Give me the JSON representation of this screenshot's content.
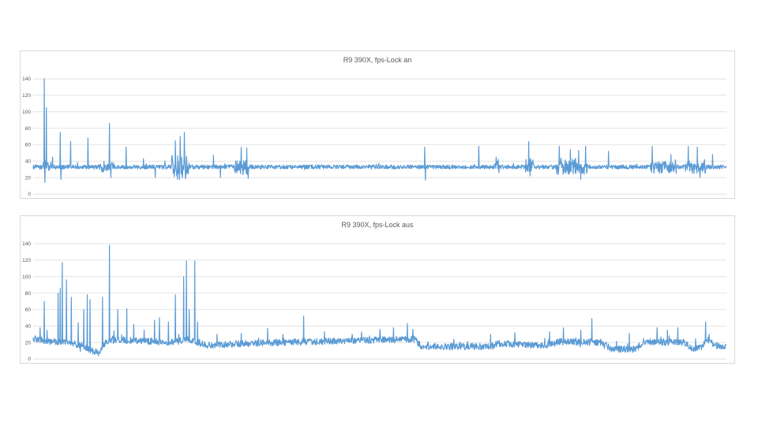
{
  "chart_data": [
    {
      "type": "line",
      "title": "R9 390X, fps-Lock an",
      "xlabel": "",
      "ylabel": "",
      "ylim": [
        0,
        140
      ],
      "yticks": [
        0,
        20,
        40,
        60,
        80,
        100,
        120,
        140
      ],
      "grid": true,
      "legend": "none",
      "color": "#5b9bd5",
      "baseline": 33,
      "noise": 2.5,
      "n_samples": 2000,
      "events": [
        {
          "x": 0.016,
          "y": 140
        },
        {
          "x": 0.017,
          "y": 14
        },
        {
          "x": 0.019,
          "y": 105
        },
        {
          "x": 0.028,
          "y": 45
        },
        {
          "x": 0.039,
          "y": 75
        },
        {
          "x": 0.04,
          "y": 18
        },
        {
          "x": 0.054,
          "y": 64
        },
        {
          "x": 0.079,
          "y": 68
        },
        {
          "x": 0.11,
          "y": 86
        },
        {
          "x": 0.112,
          "y": 20
        },
        {
          "x": 0.134,
          "y": 57
        },
        {
          "x": 0.159,
          "y": 43
        },
        {
          "x": 0.176,
          "y": 20
        },
        {
          "x": 0.205,
          "y": 65
        },
        {
          "x": 0.208,
          "y": 18
        },
        {
          "x": 0.212,
          "y": 70
        },
        {
          "x": 0.215,
          "y": 20
        },
        {
          "x": 0.218,
          "y": 75
        },
        {
          "x": 0.26,
          "y": 47
        },
        {
          "x": 0.27,
          "y": 20
        },
        {
          "x": 0.3,
          "y": 57
        },
        {
          "x": 0.308,
          "y": 56
        },
        {
          "x": 0.31,
          "y": 19
        },
        {
          "x": 0.565,
          "y": 57
        },
        {
          "x": 0.566,
          "y": 17
        },
        {
          "x": 0.643,
          "y": 58
        },
        {
          "x": 0.668,
          "y": 45
        },
        {
          "x": 0.715,
          "y": 64
        },
        {
          "x": 0.717,
          "y": 22
        },
        {
          "x": 0.759,
          "y": 58
        },
        {
          "x": 0.775,
          "y": 54
        },
        {
          "x": 0.787,
          "y": 53
        },
        {
          "x": 0.797,
          "y": 58
        },
        {
          "x": 0.79,
          "y": 18
        },
        {
          "x": 0.83,
          "y": 52
        },
        {
          "x": 0.893,
          "y": 58
        },
        {
          "x": 0.92,
          "y": 48
        },
        {
          "x": 0.945,
          "y": 58
        },
        {
          "x": 0.958,
          "y": 57
        },
        {
          "x": 0.962,
          "y": 20
        },
        {
          "x": 0.98,
          "y": 48
        }
      ],
      "busy_regions": [
        {
          "from": 0.012,
          "to": 0.03,
          "amp": 6
        },
        {
          "from": 0.095,
          "to": 0.115,
          "amp": 5
        },
        {
          "from": 0.2,
          "to": 0.225,
          "amp": 14
        },
        {
          "from": 0.29,
          "to": 0.312,
          "amp": 8
        },
        {
          "from": 0.665,
          "to": 0.672,
          "amp": 9
        },
        {
          "from": 0.71,
          "to": 0.722,
          "amp": 9
        },
        {
          "from": 0.755,
          "to": 0.8,
          "amp": 9
        },
        {
          "from": 0.89,
          "to": 0.93,
          "amp": 7
        },
        {
          "from": 0.94,
          "to": 0.97,
          "amp": 7
        }
      ]
    },
    {
      "type": "line",
      "title": "R9 390X, fps-Lock aus",
      "xlabel": "",
      "ylabel": "",
      "ylim": [
        0,
        140
      ],
      "yticks": [
        0,
        20,
        40,
        60,
        80,
        100,
        120,
        140
      ],
      "grid": true,
      "legend": "none",
      "color": "#5b9bd5",
      "noise": 4,
      "n_samples": 2000,
      "levels": [
        {
          "x": 0.0,
          "y": 25
        },
        {
          "x": 0.03,
          "y": 20
        },
        {
          "x": 0.045,
          "y": 22
        },
        {
          "x": 0.07,
          "y": 16
        },
        {
          "x": 0.085,
          "y": 10
        },
        {
          "x": 0.095,
          "y": 7
        },
        {
          "x": 0.1,
          "y": 15
        },
        {
          "x": 0.11,
          "y": 24
        },
        {
          "x": 0.2,
          "y": 20
        },
        {
          "x": 0.22,
          "y": 24
        },
        {
          "x": 0.25,
          "y": 17
        },
        {
          "x": 0.35,
          "y": 20
        },
        {
          "x": 0.45,
          "y": 22
        },
        {
          "x": 0.55,
          "y": 24
        },
        {
          "x": 0.56,
          "y": 15
        },
        {
          "x": 0.66,
          "y": 15
        },
        {
          "x": 0.67,
          "y": 19
        },
        {
          "x": 0.74,
          "y": 16
        },
        {
          "x": 0.76,
          "y": 21
        },
        {
          "x": 0.82,
          "y": 20
        },
        {
          "x": 0.835,
          "y": 12
        },
        {
          "x": 0.87,
          "y": 12
        },
        {
          "x": 0.88,
          "y": 21
        },
        {
          "x": 0.94,
          "y": 20
        },
        {
          "x": 0.95,
          "y": 12
        },
        {
          "x": 0.965,
          "y": 14
        },
        {
          "x": 0.97,
          "y": 25
        },
        {
          "x": 0.985,
          "y": 16
        },
        {
          "x": 1.0,
          "y": 15
        }
      ],
      "events": [
        {
          "x": 0.01,
          "y": 38
        },
        {
          "x": 0.016,
          "y": 70
        },
        {
          "x": 0.02,
          "y": 35
        },
        {
          "x": 0.036,
          "y": 80
        },
        {
          "x": 0.039,
          "y": 86
        },
        {
          "x": 0.042,
          "y": 117
        },
        {
          "x": 0.048,
          "y": 96
        },
        {
          "x": 0.055,
          "y": 75
        },
        {
          "x": 0.065,
          "y": 44
        },
        {
          "x": 0.073,
          "y": 60
        },
        {
          "x": 0.078,
          "y": 78
        },
        {
          "x": 0.082,
          "y": 72
        },
        {
          "x": 0.1,
          "y": 75
        },
        {
          "x": 0.11,
          "y": 138
        },
        {
          "x": 0.122,
          "y": 60
        },
        {
          "x": 0.135,
          "y": 61
        },
        {
          "x": 0.145,
          "y": 42
        },
        {
          "x": 0.16,
          "y": 35
        },
        {
          "x": 0.175,
          "y": 47
        },
        {
          "x": 0.182,
          "y": 50
        },
        {
          "x": 0.195,
          "y": 45
        },
        {
          "x": 0.205,
          "y": 78
        },
        {
          "x": 0.21,
          "y": 30
        },
        {
          "x": 0.217,
          "y": 100
        },
        {
          "x": 0.221,
          "y": 119
        },
        {
          "x": 0.225,
          "y": 60
        },
        {
          "x": 0.233,
          "y": 119
        },
        {
          "x": 0.237,
          "y": 45
        },
        {
          "x": 0.265,
          "y": 30
        },
        {
          "x": 0.3,
          "y": 31
        },
        {
          "x": 0.338,
          "y": 37
        },
        {
          "x": 0.36,
          "y": 30
        },
        {
          "x": 0.39,
          "y": 52
        },
        {
          "x": 0.42,
          "y": 33
        },
        {
          "x": 0.46,
          "y": 30
        },
        {
          "x": 0.5,
          "y": 36
        },
        {
          "x": 0.52,
          "y": 38
        },
        {
          "x": 0.54,
          "y": 43
        },
        {
          "x": 0.548,
          "y": 36
        },
        {
          "x": 0.66,
          "y": 30
        },
        {
          "x": 0.695,
          "y": 32
        },
        {
          "x": 0.745,
          "y": 33
        },
        {
          "x": 0.765,
          "y": 38
        },
        {
          "x": 0.79,
          "y": 35
        },
        {
          "x": 0.806,
          "y": 49
        },
        {
          "x": 0.86,
          "y": 31
        },
        {
          "x": 0.9,
          "y": 38
        },
        {
          "x": 0.915,
          "y": 35
        },
        {
          "x": 0.93,
          "y": 38
        },
        {
          "x": 0.97,
          "y": 45
        },
        {
          "x": 0.975,
          "y": 30
        }
      ]
    }
  ]
}
